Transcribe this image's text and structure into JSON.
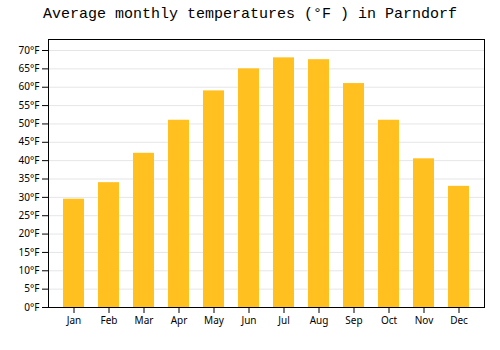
{
  "chart_data": {
    "type": "bar",
    "title": "Average monthly temperatures (°F ) in Parndorf",
    "categories": [
      "Jan",
      "Feb",
      "Mar",
      "Apr",
      "May",
      "Jun",
      "Jul",
      "Aug",
      "Sep",
      "Oct",
      "Nov",
      "Dec"
    ],
    "values": [
      29.5,
      34.0,
      42.0,
      51.0,
      59.0,
      65.0,
      68.0,
      67.5,
      61.0,
      51.0,
      40.5,
      33.0
    ],
    "color": "#FFC020",
    "ylim": [
      0,
      73
    ],
    "yticks": [
      {
        "value": 0,
        "label": "0°F"
      },
      {
        "value": 5,
        "label": "5°F"
      },
      {
        "value": 10,
        "label": "10°F"
      },
      {
        "value": 15,
        "label": "15°F"
      },
      {
        "value": 20,
        "label": "20°F"
      },
      {
        "value": 25,
        "label": "25°F"
      },
      {
        "value": 30,
        "label": "30°F"
      },
      {
        "value": 35,
        "label": "35°F"
      },
      {
        "value": 40,
        "label": "40°F"
      },
      {
        "value": 45,
        "label": "45°F"
      },
      {
        "value": 50,
        "label": "50°F"
      },
      {
        "value": 55,
        "label": "55°F"
      },
      {
        "value": 60,
        "label": "60°F"
      },
      {
        "value": 65,
        "label": "65°F"
      },
      {
        "value": 70,
        "label": "70°F"
      }
    ],
    "grid": true
  }
}
